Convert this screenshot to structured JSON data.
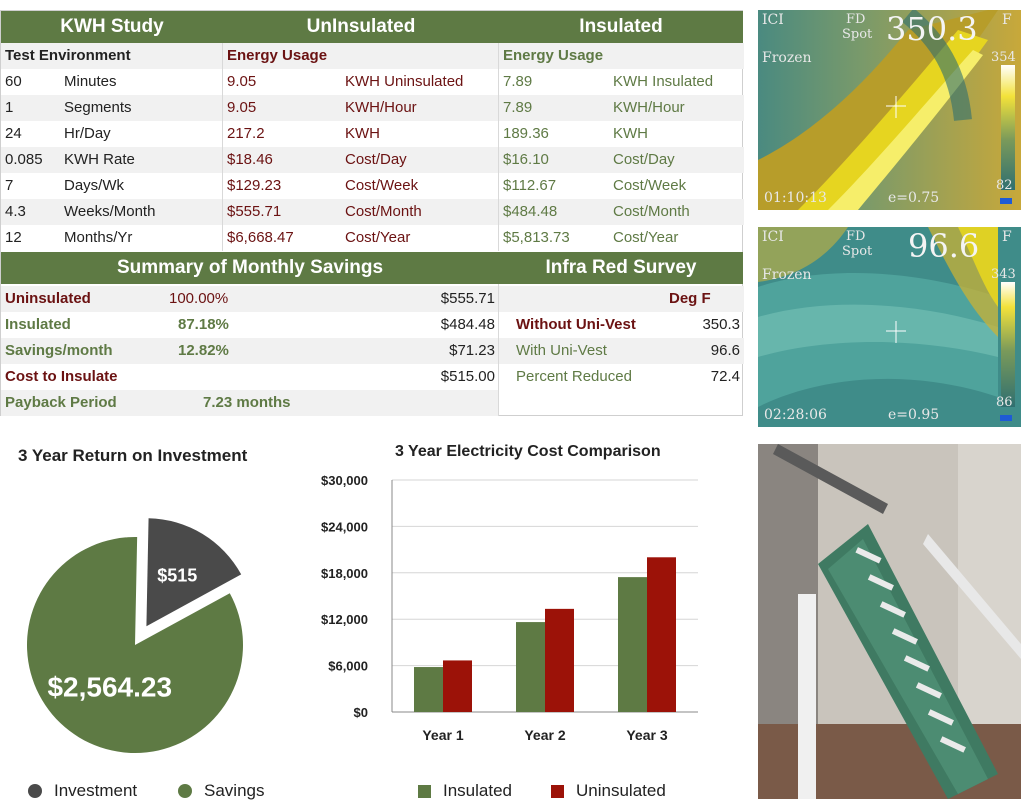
{
  "header": {
    "study": "KWH Study",
    "uninsulated": "UnInsulated",
    "insulated": "Insulated"
  },
  "subheader": {
    "test_env": "Test Environment",
    "energy_unins": "Energy Usage",
    "energy_ins": "Energy Usage"
  },
  "rows": [
    {
      "n": "60",
      "label": "Minutes",
      "u_val": "9.05",
      "u_lab": "KWH Uninsulated",
      "i_val": "7.89",
      "i_lab": "KWH Insulated"
    },
    {
      "n": "1",
      "label": "Segments",
      "u_val": "9.05",
      "u_lab": "KWH/Hour",
      "i_val": "7.89",
      "i_lab": "KWH/Hour"
    },
    {
      "n": "24",
      "label": "Hr/Day",
      "u_val": "217.2",
      "u_lab": "KWH",
      "i_val": "189.36",
      "i_lab": "KWH"
    },
    {
      "n": "0.085",
      "label": "KWH Rate",
      "u_val": "$18.46",
      "u_lab": "Cost/Day",
      "i_val": "$16.10",
      "i_lab": "Cost/Day"
    },
    {
      "n": "7",
      "label": "Days/Wk",
      "u_val": "$129.23",
      "u_lab": "Cost/Week",
      "i_val": "$112.67",
      "i_lab": "Cost/Week"
    },
    {
      "n": "4.3",
      "label": "Weeks/Month",
      "u_val": "$555.71",
      "u_lab": "Cost/Month",
      "i_val": "$484.48",
      "i_lab": "Cost/Month"
    },
    {
      "n": "12",
      "label": "Months/Yr",
      "u_val": "$6,668.47",
      "u_lab": "Cost/Year",
      "i_val": "$5,813.73",
      "i_lab": "Cost/Year"
    }
  ],
  "summary": {
    "title": "Summary of Monthly Savings",
    "uninsulated_label": "Uninsulated",
    "uninsulated_pct": "100.00%",
    "uninsulated_val": "$555.71",
    "insulated_label": "Insulated",
    "insulated_pct": "87.18%",
    "insulated_val": "$484.48",
    "savings_label": "Savings/month",
    "savings_pct": "12.82%",
    "savings_val": "$71.23",
    "cost_label": "Cost to Insulate",
    "cost_val": "$515.00",
    "payback_label": "Payback Period",
    "payback_val": "7.23 months"
  },
  "survey": {
    "title": "Infra Red Survey",
    "unit": "Deg F",
    "without_label": "Without Uni-Vest",
    "without_val": "350.3",
    "with_label": "With Uni-Vest",
    "with_val": "96.6",
    "reduced_label": "Percent Reduced",
    "reduced_val": "72.4"
  },
  "thermal1": {
    "brand": "ICI",
    "mode_top": "FD",
    "mode_bottom": "Spot",
    "reading": "350.3",
    "unit": "F",
    "scale_max": "354",
    "scale_min": "82",
    "frozen": "Frozen",
    "time": "01:10:13",
    "emissivity": "e=0.75"
  },
  "thermal2": {
    "brand": "ICI",
    "mode_top": "FD",
    "mode_bottom": "Spot",
    "reading": "96.6",
    "unit": "F",
    "scale_max": "343",
    "scale_min": "86",
    "frozen": "Frozen",
    "time": "02:28:06",
    "emissivity": "e=0.95"
  },
  "colors": {
    "insulated": "#5e7a44",
    "uninsulated": "#9c1208",
    "investment": "#4a4a4a",
    "savings": "#5e7a44",
    "header": "#5e7a44"
  },
  "chart_data": [
    {
      "type": "pie",
      "title": "3 Year Return on Investment",
      "slices": [
        {
          "name": "Investment",
          "value": 515,
          "label": "$515",
          "color": "#4a4a4a"
        },
        {
          "name": "Savings",
          "value": 2564.23,
          "label": "$2,564.23",
          "color": "#5e7a44"
        }
      ],
      "legend": [
        "Investment",
        "Savings"
      ],
      "legend_position": "bottom"
    },
    {
      "type": "bar",
      "title": "3 Year Electricity Cost Comparison",
      "categories": [
        "Year 1",
        "Year 2",
        "Year 3"
      ],
      "series": [
        {
          "name": "Insulated",
          "values": [
            5813.73,
            11627.46,
            17441.19
          ],
          "color": "#5e7a44"
        },
        {
          "name": "Uninsulated",
          "values": [
            6668.47,
            13336.94,
            20005.41
          ],
          "color": "#9c1208"
        }
      ],
      "ylim": [
        0,
        30000
      ],
      "yticks": [
        "$0",
        "$6,000",
        "$12,000",
        "$18,000",
        "$24,000",
        "$30,000"
      ],
      "grid": true,
      "legend_position": "bottom"
    }
  ]
}
